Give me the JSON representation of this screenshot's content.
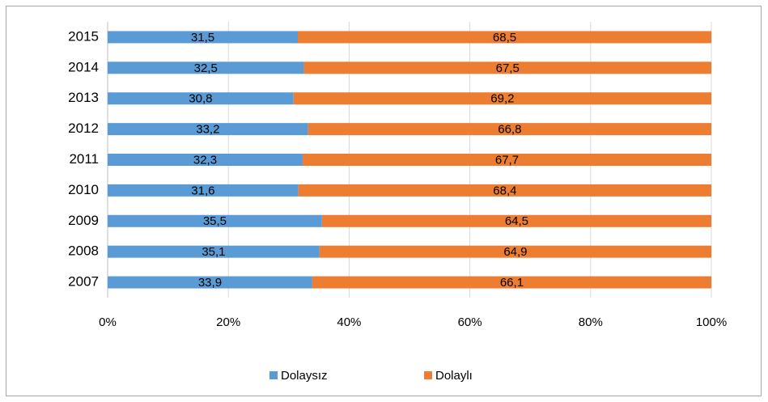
{
  "chart_data": {
    "type": "bar",
    "orientation": "horizontal",
    "stacked": true,
    "categories": [
      "2007",
      "2008",
      "2009",
      "2010",
      "2011",
      "2012",
      "2013",
      "2014",
      "2015"
    ],
    "series": [
      {
        "name": "Dolaysız",
        "color": "#5b9bd5",
        "values": [
          33.9,
          35.1,
          35.5,
          31.6,
          32.3,
          33.2,
          30.8,
          32.5,
          31.5
        ],
        "value_labels": [
          "33,9",
          "35,1",
          "35,5",
          "31,6",
          "32,3",
          "33,2",
          "30,8",
          "32,5",
          "31,5"
        ]
      },
      {
        "name": "Dolaylı",
        "color": "#ed7d31",
        "values": [
          66.1,
          64.9,
          64.5,
          68.4,
          67.7,
          66.8,
          69.2,
          67.5,
          68.5
        ],
        "value_labels": [
          "66,1",
          "64,9",
          "64,5",
          "68,4",
          "67,7",
          "66,8",
          "69,2",
          "67,5",
          "68,5"
        ]
      }
    ],
    "xlim": [
      0,
      100
    ],
    "xticks": [
      {
        "value": 0,
        "label": "0%"
      },
      {
        "value": 20,
        "label": "20%"
      },
      {
        "value": 40,
        "label": "40%"
      },
      {
        "value": 60,
        "label": "60%"
      },
      {
        "value": 80,
        "label": "80%"
      },
      {
        "value": 100,
        "label": "100%"
      }
    ],
    "grid": true,
    "legend": "bottom"
  }
}
